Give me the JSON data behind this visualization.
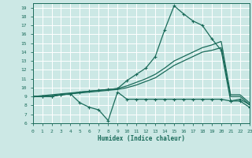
{
  "xlabel": "Humidex (Indice chaleur)",
  "bg_color": "#cce8e5",
  "grid_color": "#b0d8d5",
  "line_color": "#1a6b5a",
  "xlim": [
    0,
    23
  ],
  "ylim": [
    6,
    19.5
  ],
  "xticks": [
    0,
    1,
    2,
    3,
    4,
    5,
    6,
    7,
    8,
    9,
    10,
    11,
    12,
    13,
    14,
    15,
    16,
    17,
    18,
    19,
    20,
    21,
    22,
    23
  ],
  "yticks": [
    6,
    7,
    8,
    9,
    10,
    11,
    12,
    13,
    14,
    15,
    16,
    17,
    18,
    19
  ],
  "curve_zigzag_x": [
    0,
    1,
    2,
    3,
    4,
    5,
    6,
    7,
    8,
    9,
    10,
    11,
    12,
    13,
    14,
    15,
    16,
    17,
    18,
    19,
    20,
    21,
    22,
    23
  ],
  "curve_zigzag_y": [
    9.0,
    9.0,
    9.0,
    9.2,
    9.3,
    8.3,
    7.8,
    7.5,
    6.3,
    9.5,
    8.7,
    8.7,
    8.7,
    8.7,
    8.7,
    8.7,
    8.7,
    8.7,
    8.7,
    8.7,
    8.7,
    8.5,
    8.5,
    7.8
  ],
  "curve_peak_x": [
    0,
    1,
    2,
    3,
    4,
    5,
    6,
    7,
    8,
    9,
    10,
    11,
    12,
    13,
    14,
    15,
    16,
    17,
    18,
    19,
    20,
    21,
    22,
    23
  ],
  "curve_peak_y": [
    9.0,
    9.0,
    9.0,
    9.2,
    9.3,
    9.5,
    9.6,
    9.7,
    9.8,
    9.9,
    10.8,
    11.5,
    12.2,
    13.5,
    16.5,
    19.2,
    18.3,
    17.5,
    17.0,
    15.5,
    14.2,
    8.5,
    8.7,
    8.1
  ],
  "curve_reg1_x": [
    0,
    1,
    2,
    3,
    4,
    5,
    6,
    7,
    8,
    9,
    10,
    11,
    12,
    13,
    14,
    15,
    16,
    17,
    18,
    19,
    20,
    21,
    22,
    23
  ],
  "curve_reg1_y": [
    9.0,
    9.1,
    9.2,
    9.3,
    9.4,
    9.5,
    9.6,
    9.7,
    9.8,
    9.9,
    10.2,
    10.6,
    11.0,
    11.5,
    12.2,
    13.0,
    13.5,
    14.0,
    14.5,
    14.8,
    15.2,
    9.2,
    9.2,
    8.3
  ],
  "curve_reg2_x": [
    0,
    1,
    2,
    3,
    4,
    5,
    6,
    7,
    8,
    9,
    10,
    11,
    12,
    13,
    14,
    15,
    16,
    17,
    18,
    19,
    20,
    21,
    22,
    23
  ],
  "curve_reg2_y": [
    9.0,
    9.05,
    9.1,
    9.2,
    9.3,
    9.4,
    9.5,
    9.6,
    9.7,
    9.8,
    10.0,
    10.3,
    10.7,
    11.1,
    11.8,
    12.5,
    13.0,
    13.5,
    14.0,
    14.2,
    14.5,
    9.0,
    9.0,
    8.1
  ]
}
